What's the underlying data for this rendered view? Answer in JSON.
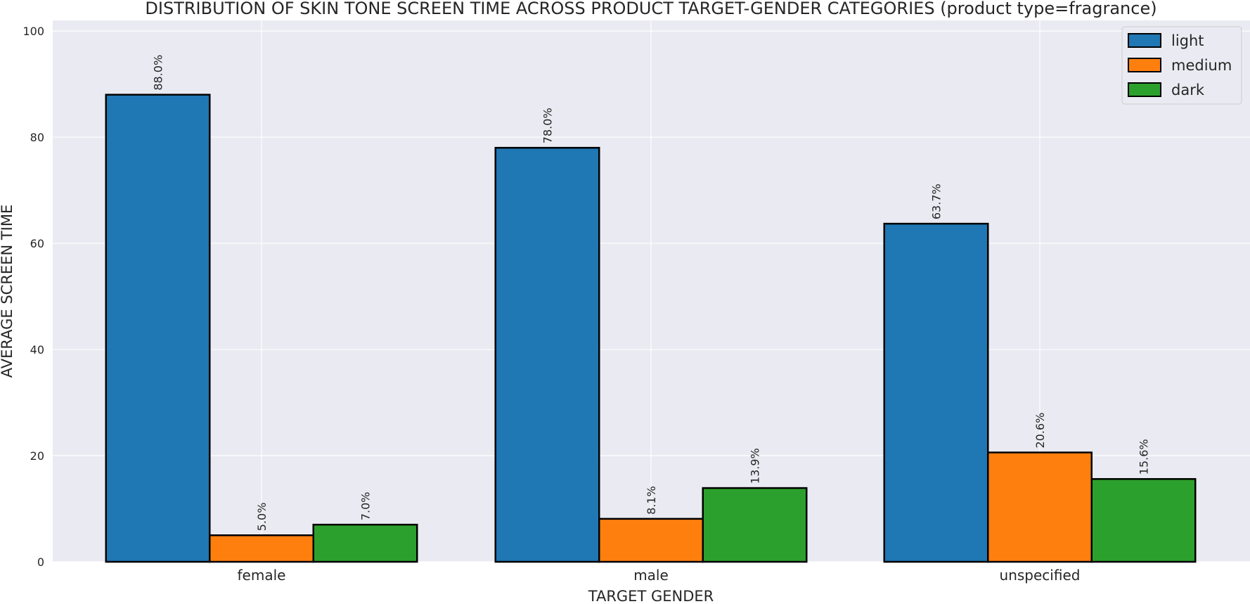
{
  "chart_data": {
    "type": "bar",
    "title": "DISTRIBUTION OF SKIN TONE SCREEN TIME ACROSS PRODUCT TARGET-GENDER CATEGORIES (product type=fragrance)",
    "xlabel": "TARGET GENDER",
    "ylabel": "AVERAGE SCREEN TIME",
    "categories": [
      "female",
      "male",
      "unspecified"
    ],
    "series": [
      {
        "name": "light",
        "color": "#1f77b4",
        "values": [
          88.0,
          78.0,
          63.7
        ],
        "labels": [
          "88.0%",
          "78.0%",
          "63.7%"
        ]
      },
      {
        "name": "medium",
        "color": "#ff7f0e",
        "values": [
          5.0,
          8.1,
          20.6
        ],
        "labels": [
          "5.0%",
          "8.1%",
          "20.6%"
        ]
      },
      {
        "name": "dark",
        "color": "#2ca02c",
        "values": [
          7.0,
          13.9,
          15.6
        ],
        "labels": [
          "7.0%",
          "13.9%",
          "15.6%"
        ]
      }
    ],
    "ylim": [
      0,
      102
    ],
    "yticks": [
      0,
      20,
      40,
      60,
      80,
      100
    ],
    "grid": true,
    "legend_position": "top-right",
    "background": "#eaeaf2"
  }
}
